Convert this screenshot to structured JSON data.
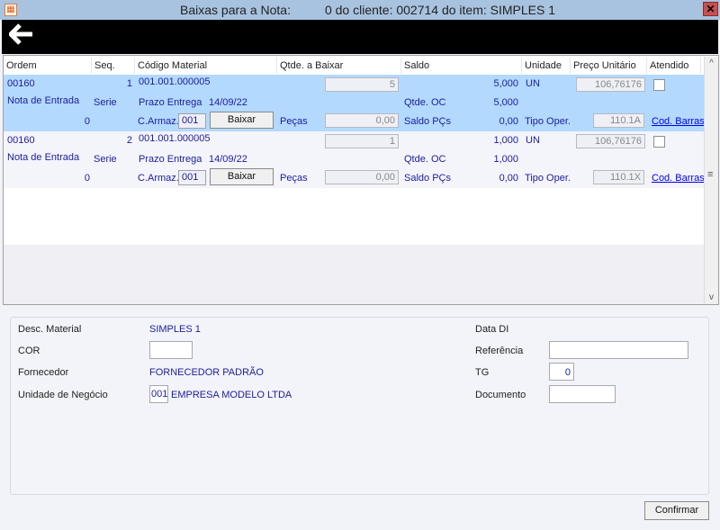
{
  "window": {
    "title_left": "Baixas para a Nota:",
    "title_right": "0 do cliente: 002714 do item: SIMPLES 1",
    "close": "✕",
    "icon": "app-icon"
  },
  "toolbar": {
    "back": "🡐"
  },
  "grid": {
    "headers": [
      "Ordem",
      "Seq.",
      "Código Material",
      "Qtde. a  Baixar",
      "Saldo",
      "Unidade",
      "Preço Unitário",
      "Atendido"
    ],
    "rows": [
      {
        "ordem": "00160",
        "seq": "1",
        "codigo": "001.001.000005",
        "qtde": "5",
        "saldo": "5,000",
        "unidade": "UN",
        "preco": "106,76176",
        "atendido": false,
        "nota_label": "Nota de Entrada",
        "serie_label": "Serie",
        "prazo_label": "Prazo Entrega",
        "prazo": "14/09/22",
        "qtde_oc_label": "Qtde. OC",
        "qtde_oc": "5,000",
        "nota": "0",
        "armaz_label": "C.Armaz.",
        "armaz": "001",
        "baixar": "Baixar",
        "pecas_label": "Peças",
        "pecas": "0,00",
        "saldo_pcs_label": "Saldo PÇs",
        "saldo_pcs": "0,00",
        "tipo_label": "Tipo Oper.",
        "tipo": "110.1A",
        "cod_barras": "Cod. Barras"
      },
      {
        "ordem": "00160",
        "seq": "2",
        "codigo": "001.001.000005",
        "qtde": "1",
        "saldo": "1,000",
        "unidade": "UN",
        "preco": "106,76176",
        "atendido": false,
        "nota_label": "Nota de Entrada",
        "serie_label": "Serie",
        "prazo_label": "Prazo Entrega",
        "prazo": "14/09/22",
        "qtde_oc_label": "Qtde. OC",
        "qtde_oc": "1,000",
        "nota": "0",
        "armaz_label": "C.Armaz.",
        "armaz": "001",
        "baixar": "Baixar",
        "pecas_label": "Peças",
        "pecas": "0,00",
        "saldo_pcs_label": "Saldo PÇs",
        "saldo_pcs": "0,00",
        "tipo_label": "Tipo Oper.",
        "tipo": "110.1X",
        "cod_barras": "Cod. Barras"
      }
    ]
  },
  "details": {
    "desc_label": "Desc. Material",
    "desc": "SIMPLES 1",
    "cor_label": "COR",
    "cor": "",
    "fornecedor_label": "Fornecedor",
    "fornecedor": "FORNECEDOR PADRÃO",
    "unidade_label": "Unidade de Negócio",
    "unidade_code": "001",
    "unidade": "EMPRESA MODELO LTDA",
    "data_di_label": "Data DI",
    "referencia_label": "Referência",
    "referencia": "",
    "tg_label": "TG",
    "tg": "0",
    "documento_label": "Documento",
    "documento": ""
  },
  "confirm": "Confirmar",
  "colors": {
    "selected_row": "#b3d9ff",
    "title_bar": "#a8c3e0",
    "value_text": "#1c1c9c"
  }
}
